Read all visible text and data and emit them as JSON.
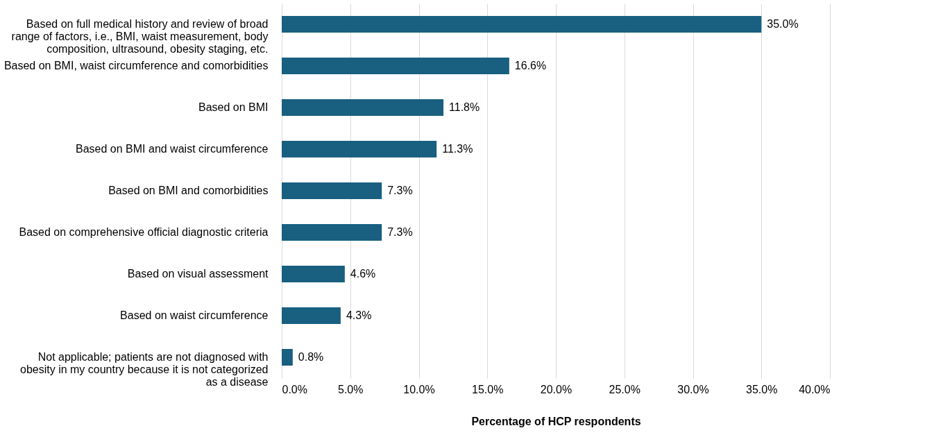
{
  "chart_data": {
    "type": "bar",
    "orientation": "horizontal",
    "categories": [
      "Based on full medical history and review of broad range of factors, i.e., BMI, waist measurement, body composition, ultrasound, obesity staging, etc.",
      "Based on BMI, waist circumference and comorbidities",
      "Based on BMI",
      "Based on BMI and waist circumference",
      "Based on BMI and comorbidities",
      "Based on comprehensive official diagnostic criteria",
      "Based on visual assessment",
      "Based on waist circumference",
      "Not applicable; patients are not diagnosed with obesity in my country because it is not categorized as a disease"
    ],
    "values": [
      35.0,
      16.6,
      11.8,
      11.3,
      7.3,
      7.3,
      4.6,
      4.3,
      0.8
    ],
    "color": "#185f80",
    "xlabel": "Percentage of HCP respondents",
    "xlim": [
      0,
      40
    ],
    "xticks": [
      {
        "value": 0,
        "label": "0.0%"
      },
      {
        "value": 5,
        "label": "5.0%"
      },
      {
        "value": 10,
        "label": "10.0%"
      },
      {
        "value": 15,
        "label": "15.0%"
      },
      {
        "value": 20,
        "label": "20.0%"
      },
      {
        "value": 25,
        "label": "25.0%"
      },
      {
        "value": 30,
        "label": "30.0%"
      },
      {
        "value": 35,
        "label": "35.0%"
      },
      {
        "value": 40,
        "label": "40.0%"
      }
    ],
    "grid": "x",
    "value_labels": [
      "35.0%",
      "16.6%",
      "11.8%",
      "11.3%",
      "7.3%",
      "7.3%",
      "4.6%",
      "4.3%",
      "0.8%"
    ]
  }
}
